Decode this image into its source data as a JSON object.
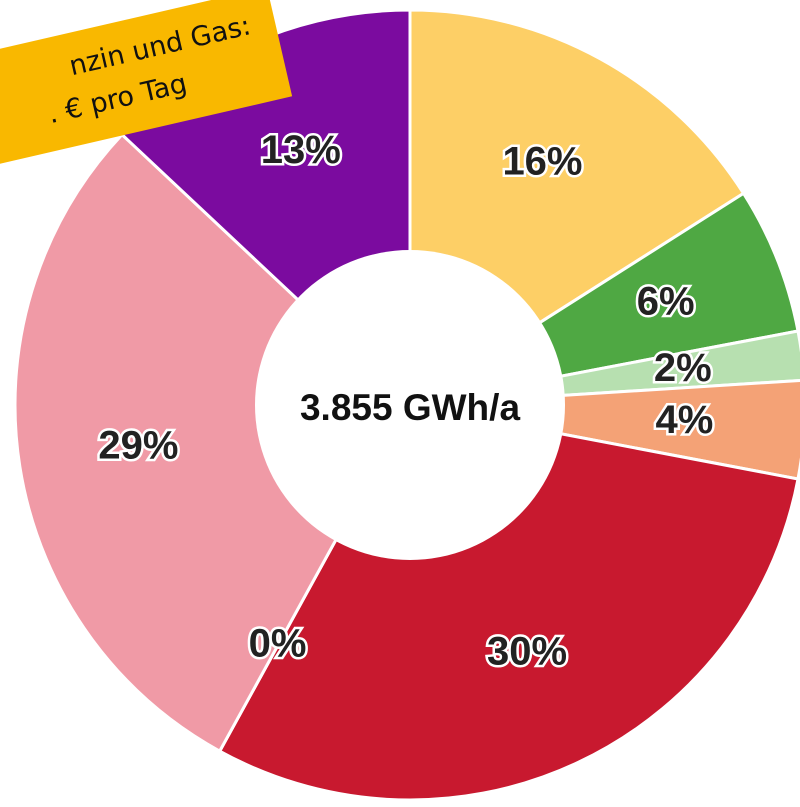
{
  "chart_data": {
    "type": "pie",
    "categories": [
      null,
      null,
      null,
      null,
      null,
      null,
      null,
      null
    ],
    "values": [
      16,
      6,
      2,
      4,
      30,
      0,
      29,
      13
    ],
    "value_labels": [
      "16%",
      "6%",
      "2%",
      "4%",
      "30%",
      "0%",
      "29%",
      "13%"
    ],
    "colors": [
      "#fdcf66",
      "#4fa843",
      "#b7e0b0",
      "#f4a276",
      "#c8192f",
      "#e4788a",
      "#f09aa6",
      "#7b0b9f"
    ],
    "center_label": "3.855 GWh/a",
    "annotation": [
      "nzin und Gas:",
      ". € pro Tag"
    ]
  }
}
